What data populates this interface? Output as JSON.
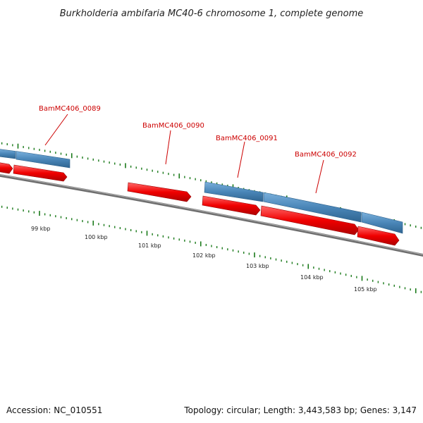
{
  "title": "Burkholderia ambifaria MC40-6 chromosome 1, complete genome",
  "footer": {
    "accession": "Accession: NC_010551",
    "summary": "Topology: circular; Length: 3,443,583 bp; Genes: 3,147"
  },
  "gene_labels": [
    "BamMC406_0089",
    "BamMC406_0090",
    "BamMC406_0091",
    "BamMC406_0092"
  ],
  "scale_labels": [
    "99 kbp",
    "100 kbp",
    "101 kbp",
    "102 kbp",
    "103 kbp",
    "104 kbp",
    "105 kbp"
  ],
  "colors": {
    "backbone": "#808080",
    "forward_feature": "#4682b4",
    "reverse_feature": "#ee0000",
    "tick": "#1a7a1a",
    "label": "#cc0000"
  }
}
